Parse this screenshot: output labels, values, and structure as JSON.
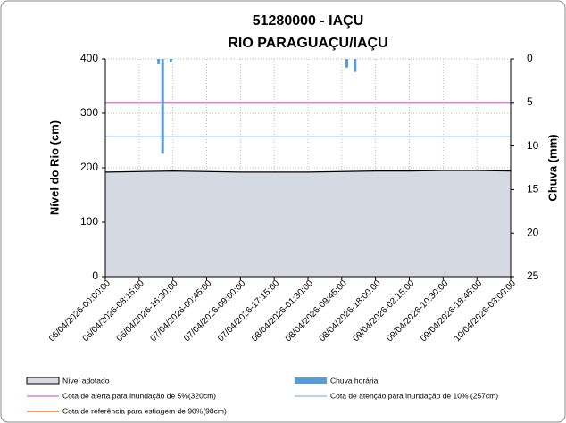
{
  "chart_data": {
    "type": "area",
    "title": "51280000 - IAÇU",
    "subtitle": "RIO PARAGUAÇU/IAÇU",
    "ylabel": "Nível do Rio (cm)",
    "y2label": "Chuva (mm)",
    "ylim": [
      0,
      400
    ],
    "yticks": [
      0,
      100,
      200,
      300,
      400
    ],
    "y2lim": [
      0,
      25
    ],
    "y2ticks": [
      0,
      5,
      10,
      15,
      20,
      25
    ],
    "y2_inverted": true,
    "grid": true,
    "categories": [
      "06/04/2026-00:00:00",
      "06/04/2026-08:15:00",
      "06/04/2026-16:30:00",
      "07/04/2026-00:45:00",
      "07/04/2026-09:00:00",
      "07/04/2026-17:15:00",
      "08/04/2026-01:30:00",
      "08/04/2026-09:45:00",
      "08/04/2026-18:00:00",
      "09/04/2026-02:15:00",
      "09/04/2026-10:30:00",
      "09/04/2026-18:45:00",
      "10/04/2026-03:00:00"
    ],
    "series": [
      {
        "name": "Nível adotado",
        "color": "#d5d9e2",
        "line_color": "#000000",
        "values": [
          192,
          193,
          194,
          193,
          192,
          192,
          192,
          193,
          194,
          194,
          195,
          195,
          194
        ]
      },
      {
        "name": "Chuva horária",
        "color": "#5b9bd5",
        "axis": "y2",
        "type": "bar",
        "x": [
          "06/04/2026-13:00:00",
          "06/04/2026-14:00:00",
          "06/04/2026-16:00:00",
          "08/04/2026-11:00:00",
          "08/04/2026-13:00:00"
        ],
        "values": [
          0.6,
          10.9,
          0.4,
          1,
          1.5
        ]
      }
    ],
    "thresholds": [
      {
        "name": "Cota de alerta para inundação de 5%(320cm)",
        "value": 320,
        "color": "#e87de0"
      },
      {
        "name": "Cota de atenção para inundação de 10% (257cm)",
        "value": 257,
        "color": "#9dc3e6"
      },
      {
        "name": "Cota de referência para estiagem de 90%(98cm)",
        "value": 98,
        "color": "#ed7d31"
      }
    ]
  }
}
